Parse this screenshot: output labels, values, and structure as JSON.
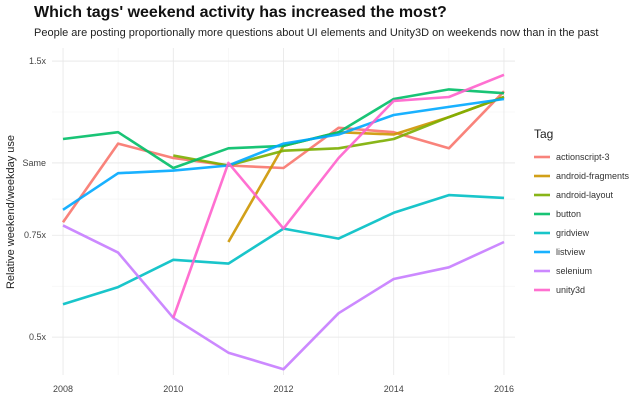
{
  "chart_data": {
    "type": "line",
    "title": "Which tags' weekend activity has increased the most?",
    "subtitle": "People are posting proportionally more questions about UI elements and Unity3D on weekends now than in the past",
    "xlabel": "",
    "ylabel": "Relative weekend/weekday use",
    "y_scale": "log",
    "xlim": [
      2007.8,
      2016.2
    ],
    "ylim": [
      0.43,
      1.58
    ],
    "x_ticks": [
      2008,
      2010,
      2012,
      2014,
      2016
    ],
    "y_ticks": [
      {
        "value": 0.5,
        "label": "0.5x"
      },
      {
        "value": 0.75,
        "label": "0.75x"
      },
      {
        "value": 1.0,
        "label": "Same"
      },
      {
        "value": 1.5,
        "label": "1.5x"
      }
    ],
    "legend_title": "Tag",
    "legend_position": "right",
    "grid": true,
    "series": [
      {
        "name": "actionscript-3",
        "color": "#F8766D",
        "x": [
          2008,
          2009,
          2010,
          2011,
          2012,
          2013,
          2014,
          2015,
          2016
        ],
        "values": [
          0.79,
          1.08,
          1.02,
          0.99,
          0.98,
          1.15,
          1.13,
          1.06,
          1.33
        ]
      },
      {
        "name": "android-fragments",
        "color": "#CD9600",
        "x": [
          2011,
          2012,
          2013,
          2014,
          2015,
          2016
        ],
        "values": [
          0.73,
          1.07,
          1.13,
          1.12,
          1.2,
          1.3
        ]
      },
      {
        "name": "android-layout",
        "color": "#7CAE00",
        "x": [
          2010,
          2011,
          2012,
          2013,
          2014,
          2015,
          2016
        ],
        "values": [
          1.03,
          0.99,
          1.05,
          1.06,
          1.1,
          1.2,
          1.3
        ]
      },
      {
        "name": "button",
        "color": "#00BE67",
        "x": [
          2008,
          2009,
          2010,
          2011,
          2012,
          2013,
          2014,
          2015,
          2016
        ],
        "values": [
          1.1,
          1.13,
          0.98,
          1.06,
          1.07,
          1.13,
          1.29,
          1.34,
          1.32
        ]
      },
      {
        "name": "gridview",
        "color": "#00BFC4",
        "x": [
          2008,
          2009,
          2010,
          2011,
          2012,
          2013,
          2014,
          2015,
          2016
        ],
        "values": [
          0.57,
          0.61,
          0.68,
          0.67,
          0.77,
          0.74,
          0.82,
          0.88,
          0.87
        ]
      },
      {
        "name": "listview",
        "color": "#00A9FF",
        "x": [
          2008,
          2009,
          2010,
          2011,
          2012,
          2013,
          2014,
          2015,
          2016
        ],
        "values": [
          0.83,
          0.96,
          0.97,
          0.99,
          1.08,
          1.12,
          1.21,
          1.25,
          1.29
        ]
      },
      {
        "name": "selenium",
        "color": "#C77CFF",
        "x": [
          2008,
          2009,
          2010,
          2011,
          2012,
          2013,
          2014,
          2015,
          2016
        ],
        "values": [
          0.78,
          0.7,
          0.54,
          0.47,
          0.44,
          0.55,
          0.63,
          0.66,
          0.73
        ]
      },
      {
        "name": "unity3d",
        "color": "#FF61CC",
        "x": [
          2010,
          2011,
          2012,
          2013,
          2014,
          2015,
          2016
        ],
        "values": [
          0.54,
          1.0,
          0.77,
          1.02,
          1.28,
          1.3,
          1.42
        ]
      }
    ]
  }
}
